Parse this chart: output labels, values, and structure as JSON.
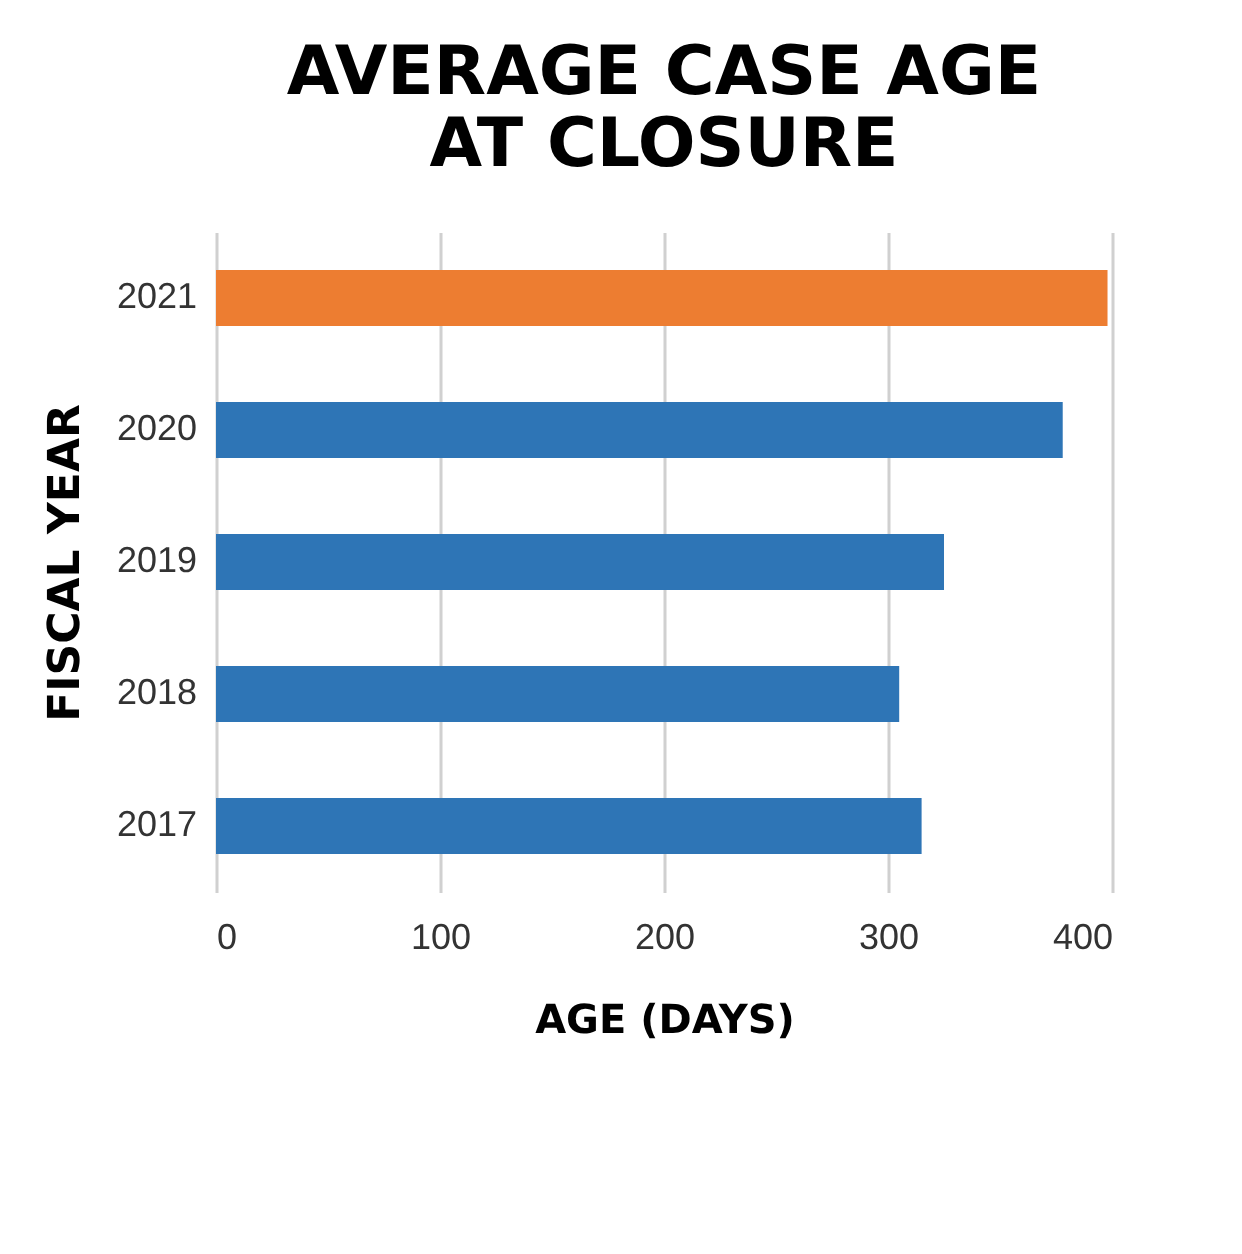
{
  "chart_data": {
    "type": "bar",
    "orientation": "horizontal",
    "title": [
      "AVERAGE CASE AGE",
      "AT CLOSURE"
    ],
    "xlabel": "AGE (DAYS)",
    "ylabel": "FISCAL YEAR",
    "categories": [
      "2021",
      "2020",
      "2019",
      "2018",
      "2017"
    ],
    "values": [
      398,
      378,
      325,
      305,
      315
    ],
    "colors": [
      "#ed7d31",
      "#2e75b6",
      "#2e75b6",
      "#2e75b6",
      "#2e75b6"
    ],
    "xlim": [
      0,
      400
    ],
    "xticks": [
      0,
      100,
      200,
      300,
      400
    ],
    "grid": "x"
  }
}
